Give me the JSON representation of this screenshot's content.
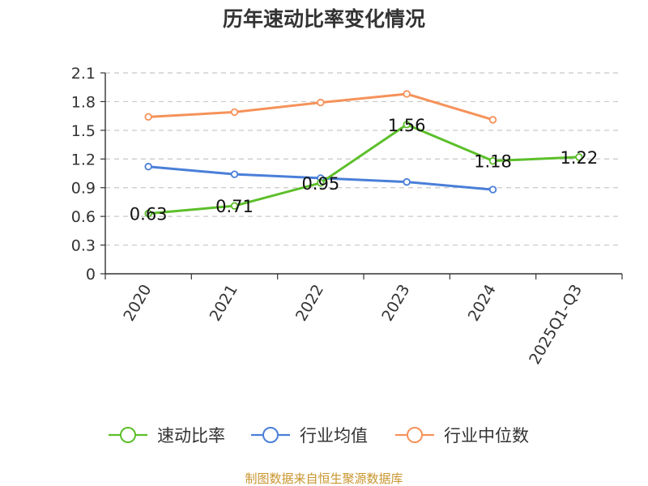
{
  "chart_data": {
    "type": "line",
    "title": "历年速动比率变化情况",
    "categories": [
      "2020",
      "2021",
      "2022",
      "2023",
      "2024",
      "2025Q1-Q3"
    ],
    "ylim": [
      0,
      2.1
    ],
    "yticks": [
      "0",
      "0.3",
      "0.6",
      "0.9",
      "1.2",
      "1.5",
      "1.8",
      "2.1"
    ],
    "grid": true,
    "legend_position": "bottom",
    "series": [
      {
        "name": "速动比率",
        "color": "#5cbf2a",
        "values": [
          0.63,
          0.71,
          0.95,
          1.56,
          1.18,
          1.22
        ],
        "labels": [
          "0.63",
          "0.71",
          "0.95",
          "1.56",
          "1.18",
          "1.22"
        ]
      },
      {
        "name": "行业均值",
        "color": "#4a7fd8",
        "values": [
          1.12,
          1.04,
          1.0,
          0.96,
          0.88,
          null
        ]
      },
      {
        "name": "行业中位数",
        "color": "#f5925a",
        "values": [
          1.64,
          1.69,
          1.79,
          1.88,
          1.61,
          null
        ]
      }
    ]
  },
  "source": "制图数据来自恒生聚源数据库"
}
